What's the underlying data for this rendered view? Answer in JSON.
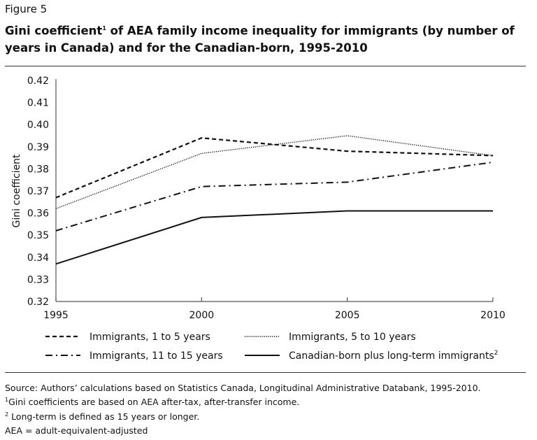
{
  "figure_label": "Figure 5",
  "title_main": "Gini coefficient",
  "title_sup": "1",
  "title_rest": " of AEA family income inequality for immigrants (by number of years in Canada) and for the Canadian-born, 1995-2010",
  "chart_data": {
    "type": "line",
    "x": [
      1995,
      2000,
      2005,
      2010
    ],
    "xlim": [
      1995,
      2010
    ],
    "ylim": [
      0.32,
      0.42
    ],
    "yticks": [
      "0.32",
      "0.33",
      "0.34",
      "0.35",
      "0.36",
      "0.37",
      "0.38",
      "0.39",
      "0.40",
      "0.41",
      "0.42"
    ],
    "xticks": [
      "1995",
      "2000",
      "2005",
      "2010"
    ],
    "ylabel": "Gini coefficient",
    "xlabel": "",
    "grid": false,
    "legend_position": "bottom",
    "series": [
      {
        "name": "Immigrants, 1 to 5 years",
        "style": "dashed",
        "values": [
          0.367,
          0.394,
          0.388,
          0.386
        ]
      },
      {
        "name": "Immigrants, 5 to 10 years",
        "style": "dotted",
        "values": [
          0.362,
          0.387,
          0.395,
          0.386
        ]
      },
      {
        "name": "Immigrants, 11 to 15 years",
        "style": "dash-dot",
        "values": [
          0.352,
          0.372,
          0.374,
          0.383
        ]
      },
      {
        "name": "Canadian-born plus long-term immigrants",
        "name_sup": "2",
        "style": "solid",
        "values": [
          0.337,
          0.358,
          0.361,
          0.361
        ]
      }
    ]
  },
  "notes": {
    "source": "Source: Authors’ calculations based on Statistics Canada, Longitudinal Administrative Databank, 1995-2010.",
    "n1_sup": "1",
    "n1": "Gini coefficients are based on AEA after-tax, after-transfer income.",
    "n2_sup": "2",
    "n2": " Long-term is defined as 15 years or longer.",
    "n3": "AEA = adult-equivalent-adjusted"
  }
}
